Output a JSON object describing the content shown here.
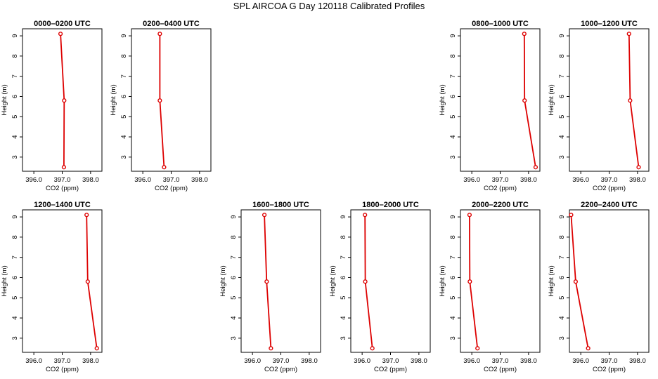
{
  "figure_title": "SPL AIRCOA G  Day 120118  Calibrated Profiles",
  "chart_data": [
    {
      "type": "line",
      "title": "0000–0200 UTC",
      "xlabel": "CO2 (ppm)",
      "ylabel": "Height (m)",
      "xlim": [
        395.6,
        398.4
      ],
      "ylim": [
        2.3,
        9.35
      ],
      "xticks": [
        "396.0",
        "397.0",
        "398.0"
      ],
      "yticks": [
        "3",
        "4",
        "5",
        "6",
        "7",
        "8",
        "9"
      ],
      "x": [
        396.94,
        397.07,
        397.06
      ],
      "y": [
        9.1,
        5.8,
        2.5
      ]
    },
    {
      "type": "line",
      "title": "0200–0400 UTC",
      "xlabel": "CO2 (ppm)",
      "ylabel": "Height (m)",
      "xlim": [
        395.6,
        398.4
      ],
      "ylim": [
        2.3,
        9.35
      ],
      "xticks": [
        "396.0",
        "397.0",
        "398.0"
      ],
      "yticks": [
        "3",
        "4",
        "5",
        "6",
        "7",
        "8",
        "9"
      ],
      "x": [
        396.6,
        396.6,
        396.75
      ],
      "y": [
        9.1,
        5.8,
        2.5
      ]
    },
    {
      "type": "line",
      "title": "0800–1000 UTC",
      "xlabel": "CO2 (ppm)",
      "ylabel": "Height (m)",
      "xlim": [
        395.6,
        398.4
      ],
      "ylim": [
        2.3,
        9.35
      ],
      "xticks": [
        "396.0",
        "397.0",
        "398.0"
      ],
      "yticks": [
        "3",
        "4",
        "5",
        "6",
        "7",
        "8",
        "9"
      ],
      "x": [
        397.85,
        397.86,
        398.25
      ],
      "y": [
        9.1,
        5.8,
        2.5
      ]
    },
    {
      "type": "line",
      "title": "1000–1200 UTC",
      "xlabel": "CO2 (ppm)",
      "ylabel": "Height (m)",
      "xlim": [
        395.6,
        398.4
      ],
      "ylim": [
        2.3,
        9.35
      ],
      "xticks": [
        "396.0",
        "397.0",
        "398.0"
      ],
      "yticks": [
        "3",
        "4",
        "5",
        "6",
        "7",
        "8",
        "9"
      ],
      "x": [
        397.7,
        397.74,
        398.04
      ],
      "y": [
        9.1,
        5.8,
        2.5
      ]
    },
    {
      "type": "line",
      "title": "1200–1400 UTC",
      "xlabel": "CO2 (ppm)",
      "ylabel": "Height (m)",
      "xlim": [
        395.6,
        398.4
      ],
      "ylim": [
        2.3,
        9.35
      ],
      "xticks": [
        "396.0",
        "397.0",
        "398.0"
      ],
      "yticks": [
        "3",
        "4",
        "5",
        "6",
        "7",
        "8",
        "9"
      ],
      "x": [
        397.86,
        397.9,
        398.22
      ],
      "y": [
        9.1,
        5.8,
        2.5
      ]
    },
    {
      "type": "line",
      "title": "1600–1800 UTC",
      "xlabel": "CO2 (ppm)",
      "ylabel": "Height (m)",
      "xlim": [
        395.6,
        398.4
      ],
      "ylim": [
        2.3,
        9.35
      ],
      "xticks": [
        "396.0",
        "397.0",
        "398.0"
      ],
      "yticks": [
        "3",
        "4",
        "5",
        "6",
        "7",
        "8",
        "9"
      ],
      "x": [
        396.42,
        396.5,
        396.65
      ],
      "y": [
        9.1,
        5.8,
        2.5
      ]
    },
    {
      "type": "line",
      "title": "1800–2000 UTC",
      "xlabel": "CO2 (ppm)",
      "ylabel": "Height (m)",
      "xlim": [
        395.6,
        398.4
      ],
      "ylim": [
        2.3,
        9.35
      ],
      "xticks": [
        "396.0",
        "397.0",
        "398.0"
      ],
      "yticks": [
        "3",
        "4",
        "5",
        "6",
        "7",
        "8",
        "9"
      ],
      "x": [
        396.1,
        396.11,
        396.36
      ],
      "y": [
        9.1,
        5.8,
        2.5
      ]
    },
    {
      "type": "line",
      "title": "2000–2200 UTC",
      "xlabel": "CO2 (ppm)",
      "ylabel": "Height (m)",
      "xlim": [
        395.6,
        398.4
      ],
      "ylim": [
        2.3,
        9.35
      ],
      "xticks": [
        "396.0",
        "397.0",
        "398.0"
      ],
      "yticks": [
        "3",
        "4",
        "5",
        "6",
        "7",
        "8",
        "9"
      ],
      "x": [
        395.92,
        395.93,
        396.2
      ],
      "y": [
        9.1,
        5.8,
        2.5
      ]
    },
    {
      "type": "line",
      "title": "2200–2400 UTC",
      "xlabel": "CO2 (ppm)",
      "ylabel": "Height (m)",
      "xlim": [
        395.6,
        398.4
      ],
      "ylim": [
        2.3,
        9.35
      ],
      "xticks": [
        "396.0",
        "397.0",
        "398.0"
      ],
      "yticks": [
        "3",
        "4",
        "5",
        "6",
        "7",
        "8",
        "9"
      ],
      "x": [
        395.66,
        395.82,
        396.26
      ],
      "y": [
        9.1,
        5.8,
        2.5
      ]
    }
  ],
  "colors": {
    "series": "#dd0000",
    "axes": "#000000",
    "background": "#ffffff"
  }
}
